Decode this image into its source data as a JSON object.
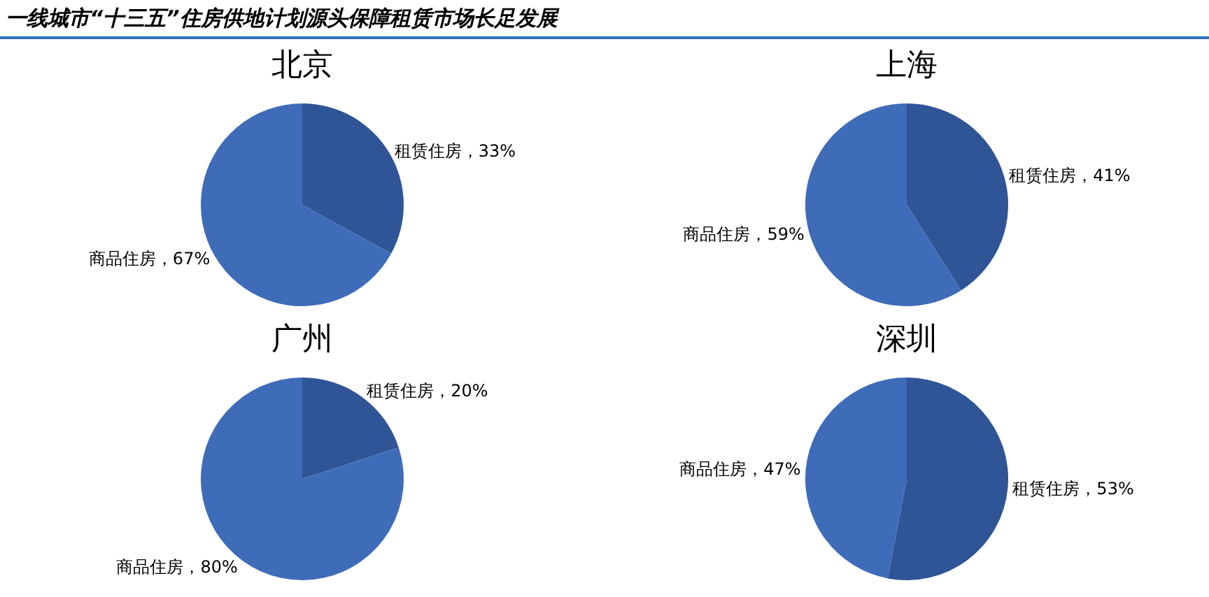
{
  "chart_data": [
    {
      "type": "pie",
      "title": "北京",
      "annotations": [
        "一线城市“十三五”住房供地计划源头保障租赁市场长足发展"
      ],
      "categories": [
        "租赁住房",
        "商品住房"
      ],
      "values": [
        33,
        67
      ],
      "value_labels": [
        "33%",
        "67%"
      ],
      "colors": [
        "#2f5597",
        "#3f6cb8"
      ],
      "legend": false
    },
    {
      "type": "pie",
      "title": "上海",
      "categories": [
        "租赁住房",
        "商品住房"
      ],
      "values": [
        41,
        59
      ],
      "value_labels": [
        "41%",
        "59%"
      ],
      "colors": [
        "#2f5597",
        "#3f6cb8"
      ],
      "legend": false
    },
    {
      "type": "pie",
      "title": "广州",
      "categories": [
        "租赁住房",
        "商品住房"
      ],
      "values": [
        20,
        80
      ],
      "value_labels": [
        "20%",
        "80%"
      ],
      "colors": [
        "#2f5597",
        "#3f6cb8"
      ],
      "legend": false
    },
    {
      "type": "pie",
      "title": "深圳",
      "categories": [
        "租赁住房",
        "商品住房"
      ],
      "values": [
        53,
        47
      ],
      "value_labels": [
        "53%",
        "47%"
      ],
      "colors": [
        "#2f5597",
        "#3f6cb8"
      ],
      "legend": false
    }
  ]
}
